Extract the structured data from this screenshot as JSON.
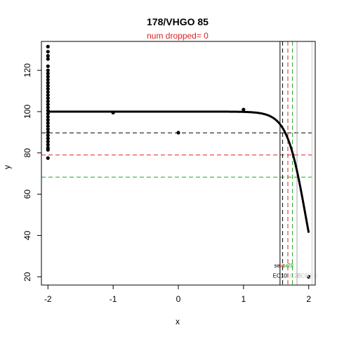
{
  "chart_data": {
    "type": "scatter",
    "title": "178/VHGO 85",
    "subtitle": "num dropped= 0",
    "xlabel": "x",
    "ylabel": "y",
    "xlim": [
      -2.1,
      2.1
    ],
    "ylim": [
      16,
      134
    ],
    "x_ticks": [
      -2,
      -1,
      0,
      1,
      2
    ],
    "y_ticks": [
      20,
      40,
      60,
      80,
      100,
      120
    ],
    "grid": false,
    "points": [
      {
        "x": -2,
        "y": 131.5
      },
      {
        "x": -2,
        "y": 129
      },
      {
        "x": -2,
        "y": 127
      },
      {
        "x": -2,
        "y": 125.5
      },
      {
        "x": -2,
        "y": 122
      },
      {
        "x": -2,
        "y": 120
      },
      {
        "x": -2,
        "y": 118.5
      },
      {
        "x": -2,
        "y": 117
      },
      {
        "x": -2,
        "y": 115.5
      },
      {
        "x": -2,
        "y": 114
      },
      {
        "x": -2,
        "y": 112.5
      },
      {
        "x": -2,
        "y": 111
      },
      {
        "x": -2,
        "y": 109.5
      },
      {
        "x": -2,
        "y": 108
      },
      {
        "x": -2,
        "y": 106.5
      },
      {
        "x": -2,
        "y": 105
      },
      {
        "x": -2,
        "y": 103.5
      },
      {
        "x": -2,
        "y": 102
      },
      {
        "x": -2,
        "y": 100.5
      },
      {
        "x": -2,
        "y": 99
      },
      {
        "x": -2,
        "y": 97.5
      },
      {
        "x": -2,
        "y": 96
      },
      {
        "x": -2,
        "y": 94.5
      },
      {
        "x": -2,
        "y": 93
      },
      {
        "x": -2,
        "y": 91.5
      },
      {
        "x": -2,
        "y": 90
      },
      {
        "x": -2,
        "y": 88.5
      },
      {
        "x": -2,
        "y": 87
      },
      {
        "x": -2,
        "y": 85.5
      },
      {
        "x": -2,
        "y": 84
      },
      {
        "x": -2,
        "y": 82.5
      },
      {
        "x": -2,
        "y": 81.5
      },
      {
        "x": -2,
        "y": 77.5
      },
      {
        "x": -1,
        "y": 99.5
      },
      {
        "x": 0,
        "y": 89.8
      },
      {
        "x": 1,
        "y": 101
      },
      {
        "x": 2,
        "y": 20
      }
    ],
    "curve": {
      "top": 100,
      "bottom": 0,
      "ec50": 1.95,
      "hill": 7,
      "x_range": [
        -2,
        2
      ]
    },
    "hlines": [
      {
        "y": 89.7,
        "color": "#000000",
        "dash": true
      },
      {
        "y": 79,
        "color": "#dd2222",
        "dash": true
      },
      {
        "y": 68.3,
        "color": "#22aa22",
        "dash": true
      }
    ],
    "vlines": [
      {
        "x": 1.56,
        "color": "#000000",
        "dash": false
      },
      {
        "x": 1.6,
        "color": "#000000",
        "dash": true
      },
      {
        "x": 1.68,
        "color": "#dd2222",
        "dash": true
      },
      {
        "x": 1.75,
        "color": "#22aa22",
        "dash": true
      },
      {
        "x": 1.82,
        "color": "#aaaaaa",
        "dash": false
      },
      {
        "x": 2.05,
        "color": "#cccccc",
        "dash": false
      }
    ],
    "annotations": [
      {
        "text": "se",
        "x": 1.47,
        "y": 24.5,
        "color": "#000000"
      },
      {
        "text": "se",
        "x": 1.54,
        "y": 24.5,
        "color": "#dd2222"
      },
      {
        "text": "se",
        "x": 1.6,
        "y": 24.5,
        "color": "#22aa22"
      },
      {
        "text": "28",
        "x": 1.67,
        "y": 24.5,
        "color": "#22aa22"
      },
      {
        "text": "EC10",
        "x": 1.45,
        "y": 19.5,
        "color": "#000000"
      },
      {
        "text": "EC20",
        "x": 1.66,
        "y": 19.5,
        "color": "#bbbbbb"
      },
      {
        "text": "EC50",
        "x": 1.82,
        "y": 19.5,
        "color": "#bbbbbb"
      },
      {
        "text": "C80",
        "x": 1.98,
        "y": 19.5,
        "color": "#dddddd"
      }
    ]
  }
}
